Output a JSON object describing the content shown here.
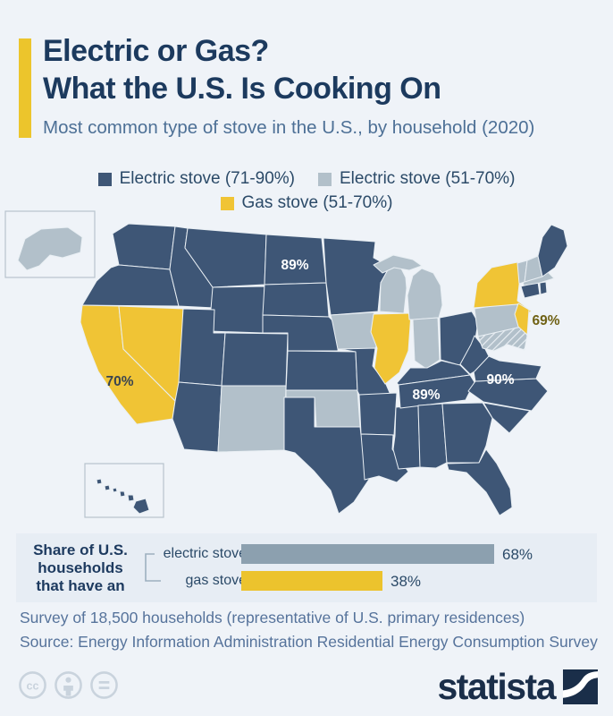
{
  "header": {
    "title_line1": "Electric or Gas?",
    "title_line2": "What the U.S. Is Cooking On",
    "subtitle": "Most common type of stove in the U.S., by household (2020)",
    "accent_color": "#ecc52c"
  },
  "legend": {
    "items": [
      {
        "key": "electric_71_90",
        "label": "Electric stove (71-90%)",
        "color": "#3e5676"
      },
      {
        "key": "electric_51_70",
        "label": "Electric stove (51-70%)",
        "color": "#b2c0ca"
      },
      {
        "key": "gas_51_70",
        "label": "Gas stove (51-70%)",
        "color": "#f0c435"
      }
    ]
  },
  "chart_data": [
    {
      "type": "heatmap",
      "subtype": "us-choropleth-map",
      "title": "Most common type of stove in the U.S., by household (2020)",
      "legend_position": "top",
      "categories": [
        {
          "name": "Electric stove (71-90%)",
          "color": "#3e5676",
          "states": [
            "WA",
            "OR",
            "ID",
            "MT",
            "WY",
            "UT",
            "CO",
            "AZ",
            "ND",
            "SD",
            "NE",
            "KS",
            "TX",
            "MN",
            "MO",
            "AR",
            "LA",
            "MS",
            "AL",
            "GA",
            "FL",
            "TN",
            "KY",
            "OH",
            "WV",
            "VA",
            "NC",
            "SC",
            "CT",
            "RI",
            "ME",
            "HI"
          ]
        },
        {
          "name": "Electric stove (51-70%)",
          "color": "#b2c0ca",
          "states": [
            "AK",
            "WI",
            "MI",
            "IN",
            "IA",
            "PA",
            "NM",
            "OK",
            "VT",
            "NH",
            "MA",
            "MD"
          ]
        },
        {
          "name": "Gas stove (51-70%)",
          "color": "#f0c435",
          "states": [
            "CA",
            "NV",
            "IL",
            "NY",
            "NJ"
          ]
        }
      ],
      "data_labels": [
        {
          "state": "ND",
          "value": "89%"
        },
        {
          "state": "CA",
          "value": "70%"
        },
        {
          "state": "NJ",
          "value": "69%"
        },
        {
          "state": "TN",
          "value": "89%"
        },
        {
          "state": "NC",
          "value": "90%"
        }
      ]
    },
    {
      "type": "bar",
      "title": "Share of U.S. households that have an",
      "categories": [
        "electric stove",
        "gas stove"
      ],
      "values": [
        68,
        38
      ],
      "unit": "%",
      "xlim": [
        0,
        100
      ],
      "colors": [
        "#8ca0af",
        "#ecc32d"
      ]
    }
  ],
  "bar_section": {
    "heading": "Share of U.S.\nhouseholds\nthat have an",
    "rows": [
      {
        "label": "electric stove",
        "value": 68,
        "display": "68%",
        "color": "#8ca0af"
      },
      {
        "label": "gas stove",
        "value": 38,
        "display": "38%",
        "color": "#ecc32d"
      }
    ]
  },
  "footer": {
    "line1": "Survey of 18,500 households (representative of U.S. primary residences)",
    "line2": "Source: Energy Information Administration Residential Energy Consumption Survey"
  },
  "branding": {
    "logo_text": "statista",
    "cc_icons": [
      "cc",
      "person",
      "equals"
    ]
  }
}
